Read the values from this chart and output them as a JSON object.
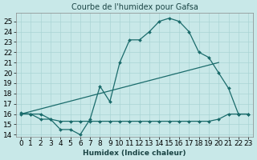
{
  "title": "Courbe de l'humidex pour Gafsa",
  "xlabel": "Humidex (Indice chaleur)",
  "bg_color": "#c8e8e8",
  "grid_color": "#aad4d4",
  "line_color": "#1a6b6b",
  "xlim": [
    -0.5,
    23.5
  ],
  "ylim": [
    13.8,
    25.8
  ],
  "yticks": [
    14,
    15,
    16,
    17,
    18,
    19,
    20,
    21,
    22,
    23,
    24,
    25
  ],
  "xticks": [
    0,
    1,
    2,
    3,
    4,
    5,
    6,
    7,
    8,
    9,
    10,
    11,
    12,
    13,
    14,
    15,
    16,
    17,
    18,
    19,
    20,
    21,
    22,
    23
  ],
  "curve1_x": [
    0,
    1,
    2,
    3,
    4,
    5,
    6,
    7,
    8,
    9,
    10,
    11,
    12,
    13,
    14,
    15,
    16,
    17,
    18,
    19,
    20,
    21,
    22,
    23
  ],
  "curve1_y": [
    16.1,
    16.0,
    16.0,
    15.5,
    14.5,
    14.5,
    14.0,
    15.5,
    18.7,
    17.2,
    21.0,
    23.2,
    23.2,
    24.0,
    25.0,
    25.3,
    25.0,
    24.0,
    22.0,
    21.5,
    20.0,
    18.5,
    16.0,
    16.0
  ],
  "curve2_x": [
    0,
    1,
    2,
    3,
    4,
    5,
    6,
    7,
    8,
    9,
    10,
    11,
    12,
    13,
    14,
    15,
    16,
    17,
    18,
    19,
    20,
    21,
    22,
    23
  ],
  "curve2_y": [
    16.0,
    16.0,
    15.5,
    15.5,
    15.3,
    15.3,
    15.3,
    15.3,
    15.3,
    15.3,
    15.3,
    15.3,
    15.3,
    15.3,
    15.3,
    15.3,
    15.3,
    15.3,
    15.3,
    15.3,
    15.5,
    16.0,
    16.0,
    16.0
  ],
  "curve3_x": [
    0,
    20
  ],
  "curve3_y": [
    16.0,
    21.0
  ],
  "marker": "D",
  "marker_size": 2.0,
  "linewidth": 0.9,
  "title_fontsize": 7,
  "font_size": 6.5
}
